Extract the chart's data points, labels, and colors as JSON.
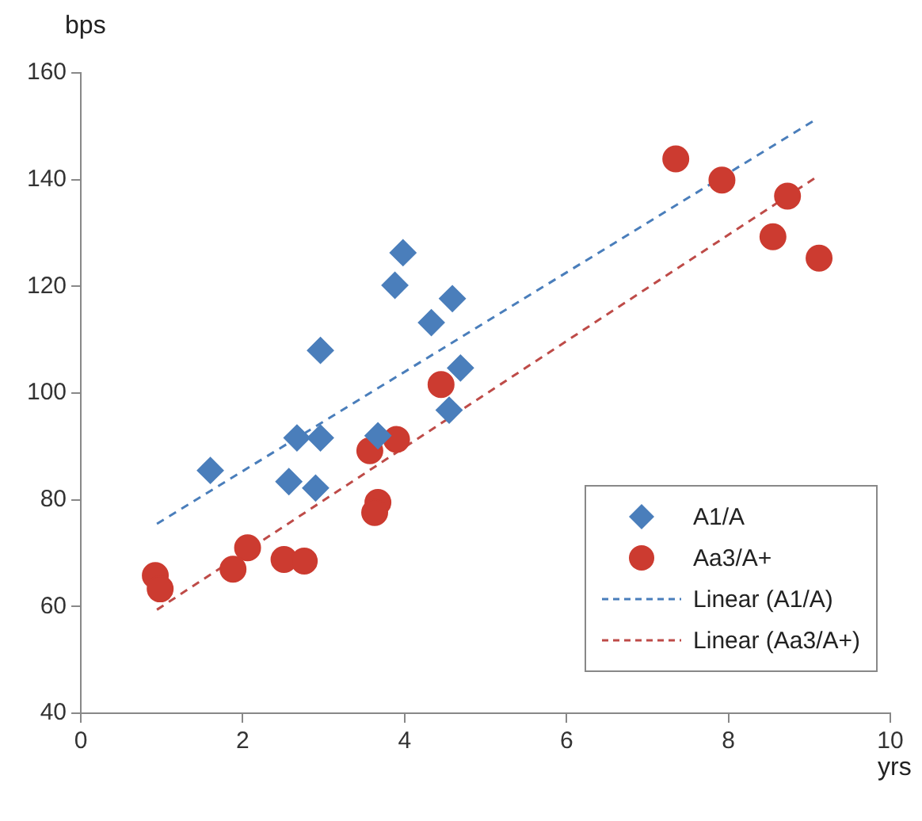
{
  "chart_data": {
    "type": "scatter",
    "xlabel": "yrs",
    "ylabel": "bps",
    "xlim": [
      0,
      10
    ],
    "ylim": [
      40,
      160
    ],
    "xticks": [
      0,
      2,
      4,
      6,
      8,
      10
    ],
    "yticks": [
      40,
      60,
      80,
      100,
      120,
      140,
      160
    ],
    "grid": false,
    "legend": "bottom right",
    "series": [
      {
        "name": "A1/A",
        "marker": "diamond",
        "color": "#4a7ebb",
        "x": [
          1.6,
          2.57,
          2.67,
          2.96,
          2.9,
          2.96,
          3.88,
          3.98,
          4.33,
          4.59,
          4.69,
          4.55,
          3.67
        ],
        "values": [
          85.5,
          83.4,
          91.6,
          91.6,
          82.2,
          108,
          120.2,
          126.3,
          113.2,
          117.7,
          104.7,
          96.8,
          92
        ]
      },
      {
        "name": "Aa3/A+",
        "marker": "circle",
        "color": "#cc3b30",
        "x": [
          0.92,
          0.98,
          1.88,
          2.06,
          2.51,
          2.76,
          3.57,
          3.9,
          3.67,
          3.63,
          4.45,
          7.35,
          7.92,
          8.73,
          8.55,
          9.12
        ],
        "values": [
          65.8,
          63.3,
          67,
          71,
          68.8,
          68.5,
          89.2,
          91.3,
          79.5,
          77.6,
          101.6,
          143.9,
          139.9,
          136.9,
          129.3,
          125.3
        ]
      },
      {
        "name": "Linear (A1/A)",
        "type": "line",
        "marker": "none",
        "line_style": "dashed",
        "color": "#4a7ebb",
        "x": [
          0.94,
          9.04
        ],
        "values": [
          75.5,
          150.9
        ]
      },
      {
        "name": "Linear (Aa3/A+)",
        "type": "line",
        "marker": "none",
        "line_style": "dashed",
        "color": "#be4b48",
        "x": [
          0.94,
          9.06
        ],
        "values": [
          59.4,
          140.2
        ]
      }
    ]
  }
}
